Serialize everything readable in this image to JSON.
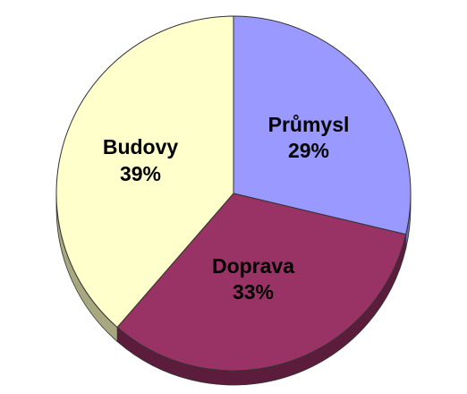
{
  "chart_data": {
    "type": "pie",
    "style": "3d",
    "legend": "none",
    "slices": [
      {
        "label": "Průmysl",
        "percent_label": "29%",
        "value": 29,
        "color": "#9999ff",
        "side_color": "#6a6ab8"
      },
      {
        "label": "Doprava",
        "percent_label": "33%",
        "value": 33,
        "color": "#993366",
        "side_color": "#5c1c3c"
      },
      {
        "label": "Budovy",
        "percent_label": "39%",
        "value": 39,
        "color": "#ffffcc",
        "side_color": "#a8a880"
      }
    ]
  }
}
